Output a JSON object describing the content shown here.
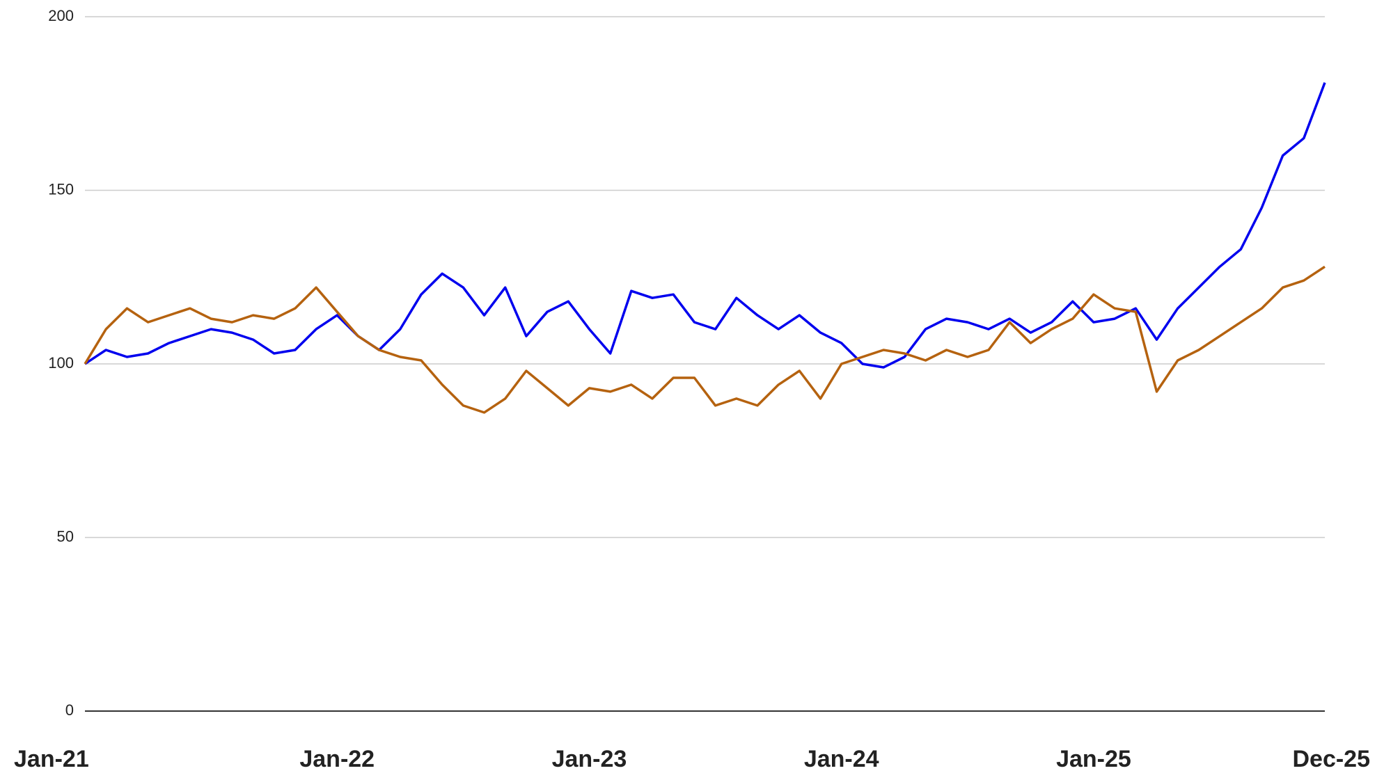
{
  "chart_data": {
    "type": "line",
    "categories": [
      "Jan-21",
      null,
      null,
      null,
      null,
      null,
      null,
      null,
      null,
      null,
      null,
      null,
      "Jan-22",
      null,
      null,
      null,
      null,
      null,
      null,
      null,
      null,
      null,
      null,
      null,
      "Jan-23",
      null,
      null,
      null,
      null,
      null,
      null,
      null,
      null,
      null,
      null,
      null,
      "Jan-24",
      null,
      null,
      null,
      null,
      null,
      null,
      null,
      null,
      null,
      null,
      null,
      "Jan-25",
      null,
      null,
      null,
      null,
      null,
      null,
      null,
      null,
      null,
      null,
      "Dec-25"
    ],
    "series": [
      {
        "color": "#0000ee",
        "values": [
          100,
          104,
          102,
          103,
          106,
          108,
          110,
          109,
          107,
          103,
          104,
          110,
          114,
          108,
          104,
          110,
          120,
          126,
          122,
          114,
          122,
          108,
          115,
          118,
          110,
          103,
          121,
          119,
          120,
          112,
          110,
          119,
          114,
          110,
          114,
          109,
          106,
          100,
          99,
          102,
          110,
          113,
          112,
          110,
          113,
          109,
          112,
          118,
          112,
          113,
          116,
          107,
          116,
          122,
          128,
          133,
          145,
          160,
          165,
          181
        ]
      },
      {
        "color": "#b5620f",
        "values": [
          100,
          110,
          116,
          112,
          114,
          116,
          113,
          112,
          114,
          113,
          116,
          122,
          115,
          108,
          104,
          102,
          101,
          94,
          88,
          86,
          90,
          98,
          93,
          88,
          93,
          92,
          94,
          90,
          96,
          96,
          88,
          90,
          88,
          94,
          98,
          90,
          100,
          102,
          104,
          103,
          101,
          104,
          102,
          104,
          112,
          106,
          110,
          113,
          120,
          116,
          115,
          92,
          101,
          104,
          108,
          112,
          116,
          122,
          124,
          128
        ]
      }
    ],
    "ylim": [
      0,
      200
    ],
    "yticks": [
      0,
      50,
      100,
      150,
      200
    ],
    "grid": true
  }
}
